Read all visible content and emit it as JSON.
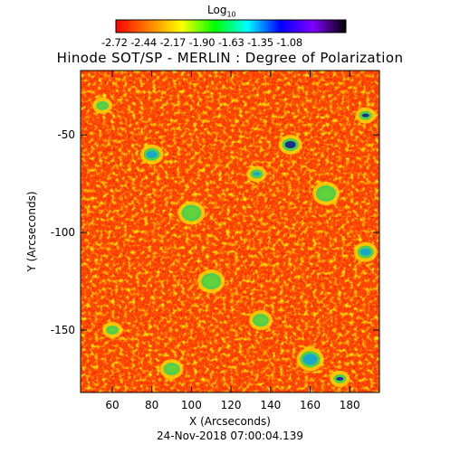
{
  "colorbar": {
    "title": "Log",
    "title_sub": "10",
    "ticks": [
      "-2.72",
      "-2.44",
      "-2.17",
      "-1.90",
      "-1.63",
      "-1.35",
      "-1.08"
    ],
    "colormap": [
      "#ff0000",
      "#ff7f00",
      "#ffff00",
      "#00ff00",
      "#00ffff",
      "#0000ff",
      "#8000ff",
      "#000000"
    ]
  },
  "title": "Hinode SOT/SP - MERLIN : Degree of Polarization",
  "footer": "24-Nov-2018 07:00:04.139",
  "chart_data": {
    "type": "heatmap",
    "title": "Hinode SOT/SP - MERLIN : Degree of Polarization",
    "xlabel": "X (Arcseconds)",
    "ylabel": "Y (Arcseconds)",
    "xlim": [
      44,
      195
    ],
    "ylim": [
      -182,
      -17
    ],
    "x_ticks": [
      60,
      80,
      100,
      120,
      140,
      160,
      180
    ],
    "y_ticks": [
      -50,
      -100,
      -150
    ],
    "colorbar_range": [
      -2.72,
      -1.08
    ],
    "colorbar_label": "Log10",
    "background_level": "red-orange (approx -2.7 to -2.4)",
    "bright_patches": [
      {
        "x": 55,
        "y": -35,
        "level": -2.0
      },
      {
        "x": 80,
        "y": -60,
        "level": -1.8
      },
      {
        "x": 100,
        "y": -90,
        "level": -2.0
      },
      {
        "x": 133,
        "y": -70,
        "level": -1.7
      },
      {
        "x": 150,
        "y": -55,
        "level": -1.6
      },
      {
        "x": 168,
        "y": -80,
        "level": -1.9
      },
      {
        "x": 188,
        "y": -40,
        "level": -1.6
      },
      {
        "x": 188,
        "y": -110,
        "level": -1.7
      },
      {
        "x": 110,
        "y": -125,
        "level": -2.0
      },
      {
        "x": 60,
        "y": -150,
        "level": -1.9
      },
      {
        "x": 135,
        "y": -145,
        "level": -2.0
      },
      {
        "x": 160,
        "y": -165,
        "level": -1.7
      },
      {
        "x": 175,
        "y": -175,
        "level": -1.5
      },
      {
        "x": 90,
        "y": -170,
        "level": -2.0
      }
    ]
  }
}
